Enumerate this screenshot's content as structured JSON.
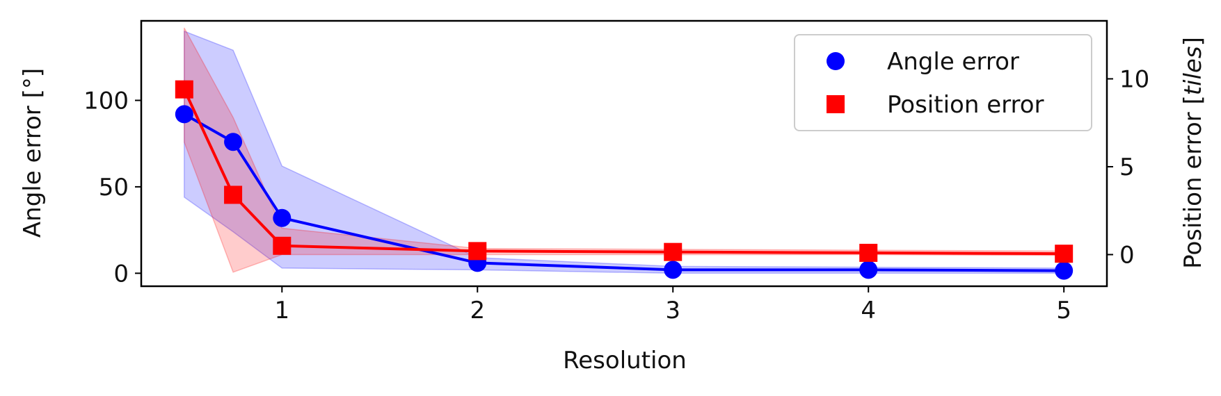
{
  "chart_data": {
    "type": "line",
    "title": "",
    "xlabel": "Resolution",
    "ylabel": "Angle error [°]",
    "y2label": "Position error [tiles]",
    "y2label_prefix": "Position error [",
    "y2label_unit": "tiles",
    "y2label_suffix": "]",
    "x": [
      0.5,
      0.75,
      1,
      2,
      3,
      4,
      5
    ],
    "xlim": [
      0.28,
      5.22
    ],
    "ylim": [
      -7.5,
      146
    ],
    "y2lim": [
      -1.8,
      13.3
    ],
    "x_ticks": [
      1,
      2,
      3,
      4,
      5
    ],
    "y_ticks": [
      0,
      50,
      100
    ],
    "y2_ticks": [
      0,
      5,
      10
    ],
    "x_tick_labels": [
      "1",
      "2",
      "3",
      "4",
      "5"
    ],
    "y_tick_labels": [
      "0",
      "50",
      "100"
    ],
    "y2_tick_labels": [
      "0",
      "5",
      "10"
    ],
    "grid": false,
    "legend_position": "top-right",
    "series": [
      {
        "name": "Angle error",
        "axis": "left",
        "marker": "circle",
        "color": "#0000ff",
        "values": [
          92,
          76,
          32,
          6,
          2,
          2,
          1.5
        ],
        "band_upper": [
          140,
          129,
          62,
          9,
          4,
          3.5,
          3
        ],
        "band_lower": [
          44,
          24,
          3,
          2,
          0,
          0,
          0
        ]
      },
      {
        "name": "Position error",
        "axis": "right",
        "marker": "square",
        "color": "#ff0000",
        "values": [
          9.4,
          3.4,
          0.5,
          0.2,
          0.15,
          0.1,
          0.05
        ],
        "band_upper": [
          12.9,
          7.8,
          1.5,
          0.35,
          0.3,
          0.25,
          0.2
        ],
        "band_lower": [
          6.4,
          -1.0,
          0.0,
          0.0,
          0.0,
          0.0,
          -0.05
        ]
      }
    ]
  }
}
